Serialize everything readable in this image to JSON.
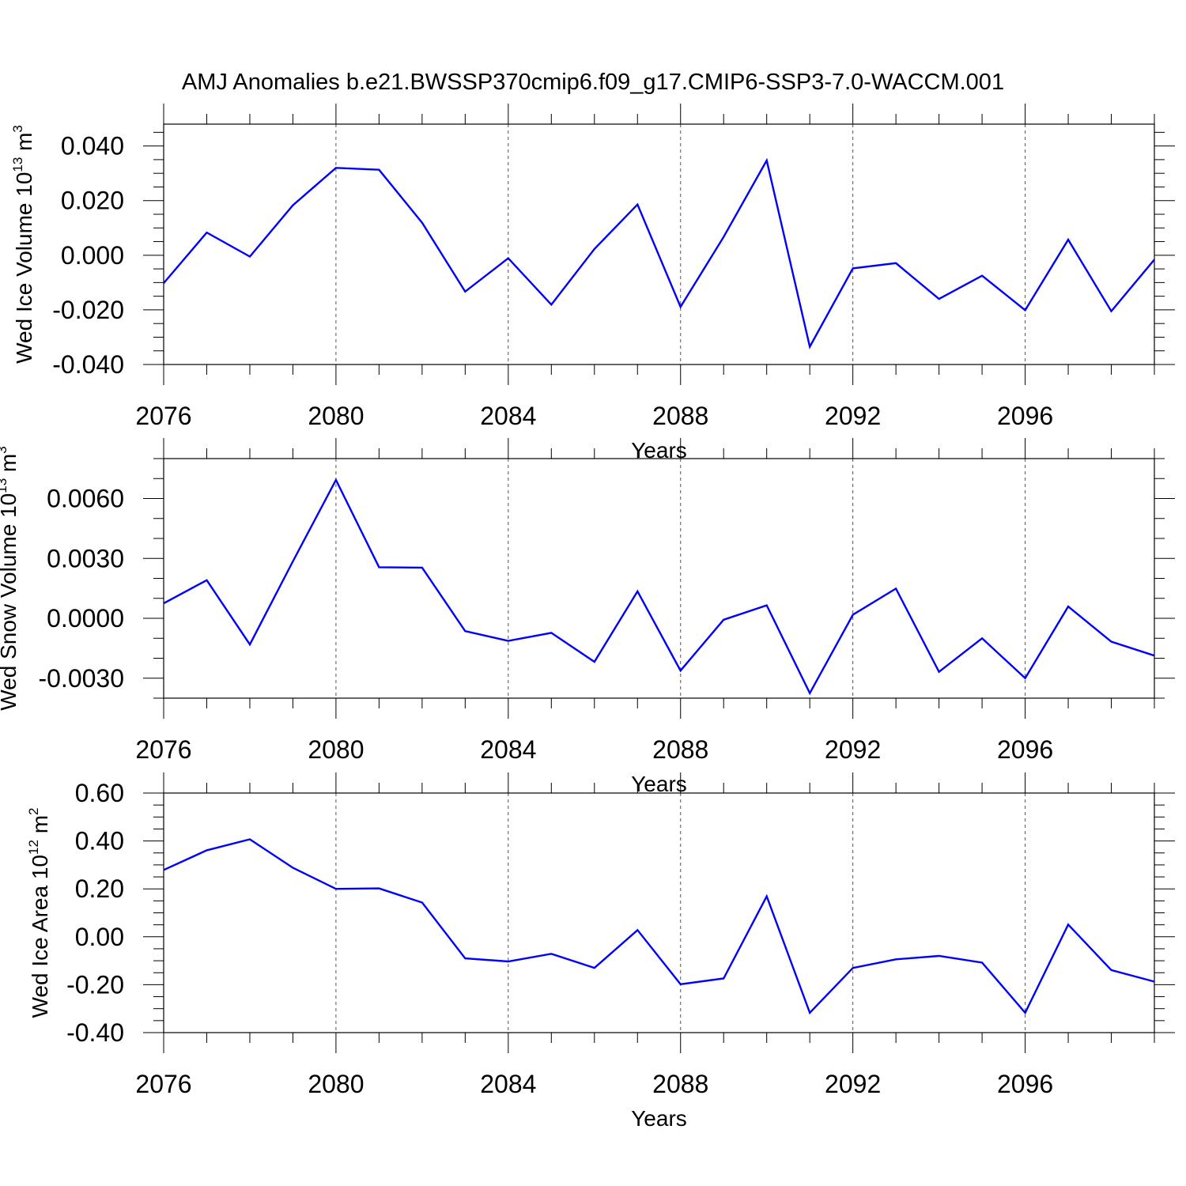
{
  "figure": {
    "title": "AMJ Anomalies b.e21.BWSSP370cmip6.f09_g17.CMIP6-SSP3-7.0-WACCM.001"
  },
  "colors": {
    "series": "#0000ff",
    "axes": "#000000",
    "grid": "#555555"
  },
  "chart_data": [
    {
      "type": "line",
      "title": "",
      "xlabel": "Years",
      "ylabel_main": "Wed Ice Volume 10",
      "ylabel_exp": "13",
      "ylabel_unit": "m",
      "ylabel_unit_exp": "3",
      "xlim": [
        2076,
        2099
      ],
      "ylim": [
        -0.04,
        0.048
      ],
      "x_ticks": [
        2076,
        2080,
        2084,
        2088,
        2092,
        2096
      ],
      "x_tick_labels": [
        "2076",
        "2080",
        "2084",
        "2088",
        "2092",
        "2096"
      ],
      "y_ticks": [
        -0.04,
        -0.02,
        0.0,
        0.02,
        0.04
      ],
      "y_tick_labels": [
        "-0.040",
        "-0.020",
        "0.000",
        "0.020",
        "0.040"
      ],
      "y_minor_step": 0.005,
      "x_minor_step": 1,
      "grid": "vertical dashed at major x ticks",
      "x": [
        2076,
        2077,
        2078,
        2079,
        2080,
        2081,
        2082,
        2083,
        2084,
        2085,
        2086,
        2087,
        2088,
        2089,
        2090,
        2091,
        2092,
        2093,
        2094,
        2095,
        2096,
        2097,
        2098,
        2099
      ],
      "values": [
        -0.0102,
        0.0083,
        -0.0005,
        0.0183,
        0.032,
        0.0313,
        0.0119,
        -0.0133,
        -0.0011,
        -0.0181,
        0.0023,
        0.0186,
        -0.0189,
        0.0067,
        0.0347,
        -0.0335,
        -0.0048,
        -0.0029,
        -0.016,
        -0.0075,
        -0.0201,
        0.0057,
        -0.0205,
        -0.0016
      ]
    },
    {
      "type": "line",
      "title": "",
      "xlabel": "Years",
      "ylabel_main": "Wed Snow Volume 10",
      "ylabel_exp": "13",
      "ylabel_unit": "m",
      "ylabel_unit_exp": "3",
      "xlim": [
        2076,
        2099
      ],
      "ylim": [
        -0.004,
        0.008
      ],
      "x_ticks": [
        2076,
        2080,
        2084,
        2088,
        2092,
        2096
      ],
      "x_tick_labels": [
        "2076",
        "2080",
        "2084",
        "2088",
        "2092",
        "2096"
      ],
      "y_ticks": [
        -0.003,
        0.0,
        0.003,
        0.006
      ],
      "y_tick_labels": [
        "-0.0030",
        "0.0000",
        "0.0030",
        "0.0060"
      ],
      "y_minor_step": 0.001,
      "x_minor_step": 1,
      "grid": "vertical dashed at major x ticks",
      "x": [
        2076,
        2077,
        2078,
        2079,
        2080,
        2081,
        2082,
        2083,
        2084,
        2085,
        2086,
        2087,
        2088,
        2089,
        2090,
        2091,
        2092,
        2093,
        2094,
        2095,
        2096,
        2097,
        2098,
        2099
      ],
      "values": [
        0.00075,
        0.00191,
        -0.00131,
        0.00285,
        0.00693,
        0.00256,
        0.00254,
        -0.00064,
        -0.00113,
        -0.00073,
        -0.00218,
        0.00135,
        -0.00262,
        -7e-05,
        0.00065,
        -0.00375,
        0.00018,
        0.00149,
        -0.00268,
        -0.001,
        -0.003,
        0.00059,
        -0.00117,
        -0.00187
      ]
    },
    {
      "type": "line",
      "title": "",
      "xlabel": "Years",
      "ylabel_main": "Wed Ice Area 10",
      "ylabel_exp": "12",
      "ylabel_unit": "m",
      "ylabel_unit_exp": "2",
      "xlim": [
        2076,
        2099
      ],
      "ylim": [
        -0.4,
        0.6
      ],
      "x_ticks": [
        2076,
        2080,
        2084,
        2088,
        2092,
        2096
      ],
      "x_tick_labels": [
        "2076",
        "2080",
        "2084",
        "2088",
        "2092",
        "2096"
      ],
      "y_ticks": [
        -0.4,
        -0.2,
        0.0,
        0.2,
        0.4,
        0.6
      ],
      "y_tick_labels": [
        "-0.40",
        "-0.20",
        "0.00",
        "0.20",
        "0.40",
        "0.60"
      ],
      "y_minor_step": 0.05,
      "x_minor_step": 1,
      "grid": "vertical dashed at major x ticks",
      "x": [
        2076,
        2077,
        2078,
        2079,
        2080,
        2081,
        2082,
        2083,
        2084,
        2085,
        2086,
        2087,
        2088,
        2089,
        2090,
        2091,
        2092,
        2093,
        2094,
        2095,
        2096,
        2097,
        2098,
        2099
      ],
      "values": [
        0.279,
        0.361,
        0.407,
        0.288,
        0.2,
        0.202,
        0.143,
        -0.09,
        -0.103,
        -0.071,
        -0.13,
        0.028,
        -0.198,
        -0.174,
        0.169,
        -0.317,
        -0.13,
        -0.094,
        -0.08,
        -0.108,
        -0.317,
        0.051,
        -0.139,
        -0.187
      ]
    }
  ]
}
